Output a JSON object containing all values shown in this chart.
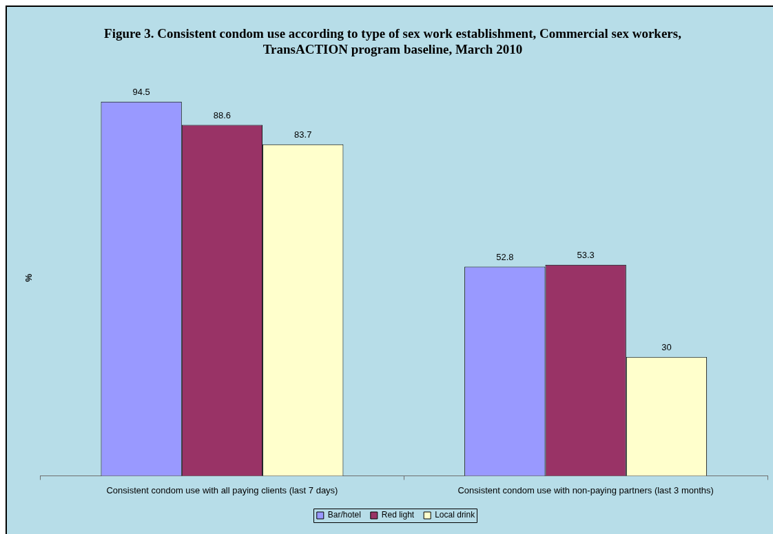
{
  "chart_data": {
    "type": "bar",
    "title": "Figure 3. Consistent condom use according to type of sex work establishment, Commercial sex workers, TransACTION program baseline, March 2010",
    "ylabel": "%",
    "categories": [
      "Consistent condom use with all paying clients (last 7 days)",
      "Consistent condom use with non-paying partners (last 3 months)"
    ],
    "series": [
      {
        "name": "Bar/hotel",
        "color": "#9999ff",
        "values": [
          94.5,
          52.8
        ]
      },
      {
        "name": "Red light",
        "color": "#993366",
        "values": [
          88.6,
          53.3
        ]
      },
      {
        "name": "Local drink",
        "color": "#ffffcc",
        "values": [
          83.7,
          30
        ]
      }
    ],
    "data_labels": true,
    "legend": "bottom"
  }
}
